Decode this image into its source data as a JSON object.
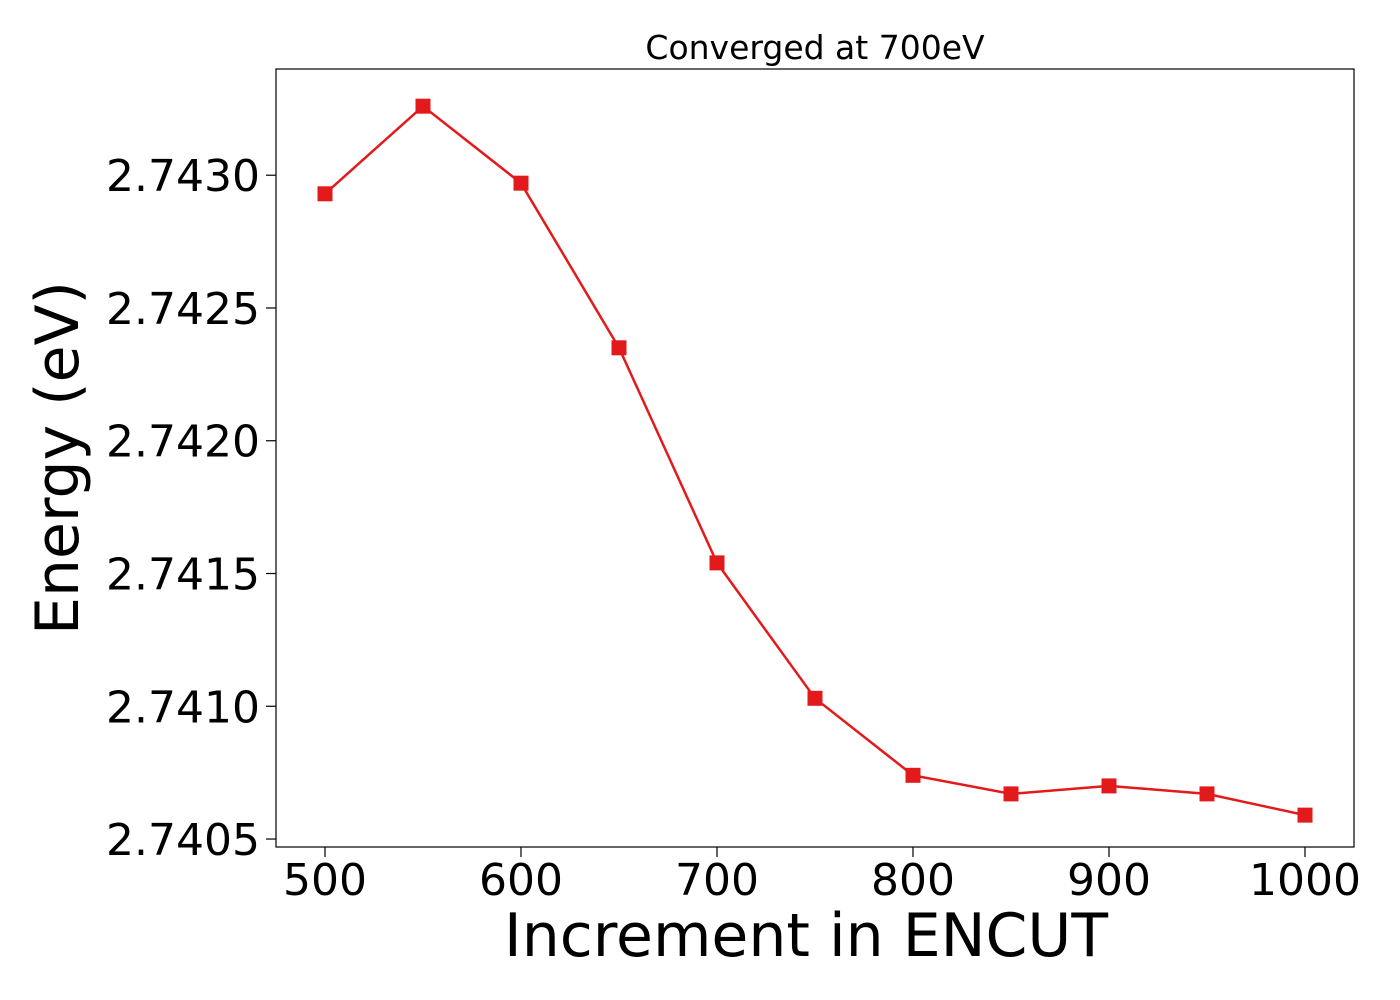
{
  "chart_data": {
    "type": "line",
    "title": "Converged at 700eV",
    "xlabel": "Increment in ENCUT",
    "ylabel": "Energy (eV)",
    "x": [
      500,
      550,
      600,
      650,
      700,
      750,
      800,
      850,
      900,
      950,
      1000
    ],
    "series": [
      {
        "values": [
          2.74293,
          2.74326,
          2.74297,
          2.74235,
          2.74154,
          2.74103,
          2.74074,
          2.74067,
          2.7407,
          2.74067,
          2.74059
        ],
        "color": "#e31a1c",
        "marker": "square"
      }
    ],
    "xlim": [
      475,
      1025
    ],
    "ylim": [
      2.74047,
      2.7434
    ],
    "xticks": [
      500,
      600,
      700,
      800,
      900,
      1000
    ],
    "xtick_labels": [
      "500",
      "600",
      "700",
      "800",
      "900",
      "1000"
    ],
    "yticks": [
      2.7405,
      2.741,
      2.7415,
      2.742,
      2.7425,
      2.743
    ],
    "ytick_labels": [
      "2.7405",
      "2.7410",
      "2.7415",
      "2.7420",
      "2.7425",
      "2.7430"
    ],
    "grid": false,
    "legend": "none"
  }
}
